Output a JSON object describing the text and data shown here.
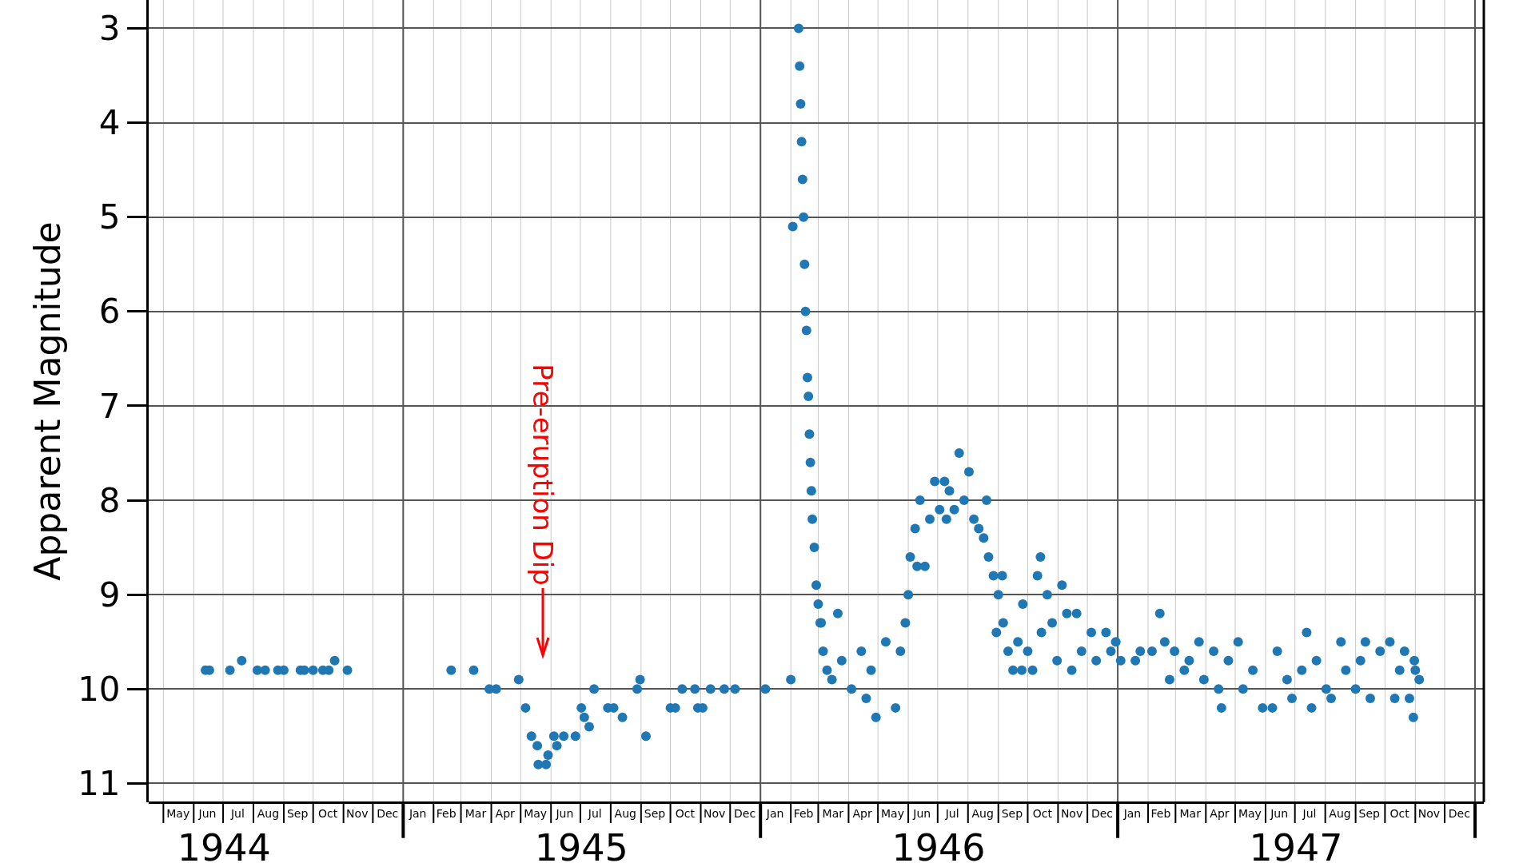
{
  "chart_data": {
    "type": "scatter",
    "ylabel": "Apparent Magnitude",
    "color": "#1f77b4",
    "marker": "circle",
    "grid": true,
    "x": [
      "1944-06-13",
      "1944-06-17",
      "1944-07-08",
      "1944-07-20",
      "1944-08-05",
      "1944-08-13",
      "1944-08-26",
      "1944-09-01",
      "1944-09-18",
      "1944-09-22",
      "1944-10-01",
      "1944-10-11",
      "1944-10-17",
      "1944-10-23",
      "1944-11-05",
      "1945-02-19",
      "1945-03-14",
      "1945-03-30",
      "1945-04-06",
      "1945-04-29",
      "1945-05-06",
      "1945-05-12",
      "1945-05-18",
      "1945-05-19",
      "1945-05-27",
      "1945-05-29",
      "1945-06-04",
      "1945-06-07",
      "1945-06-14",
      "1945-06-26",
      "1945-07-02",
      "1945-07-05",
      "1945-07-10",
      "1945-07-15",
      "1945-07-29",
      "1945-08-04",
      "1945-08-13",
      "1945-08-28",
      "1945-08-31",
      "1945-09-06",
      "1945-10-01",
      "1945-10-06",
      "1945-10-13",
      "1945-10-26",
      "1945-10-29",
      "1945-11-03",
      "1945-11-11",
      "1945-11-25",
      "1945-12-06",
      "1946-01-06",
      "1946-02-01",
      "1946-02-03",
      "1946-02-09",
      "1946-02-10",
      "1946-02-11",
      "1946-02-12",
      "1946-02-13",
      "1946-02-14",
      "1946-02-15",
      "1946-02-16",
      "1946-02-17",
      "1946-02-18",
      "1946-02-19",
      "1946-02-20",
      "1946-02-21",
      "1946-02-22",
      "1946-02-23",
      "1946-02-25",
      "1946-02-27",
      "1946-03-01",
      "1946-03-03",
      "1946-03-06",
      "1946-03-04",
      "1946-03-10",
      "1946-03-15",
      "1946-03-21",
      "1946-03-25",
      "1946-04-04",
      "1946-04-14",
      "1946-04-19",
      "1946-04-24",
      "1946-04-29",
      "1946-05-09",
      "1946-05-19",
      "1946-05-24",
      "1946-05-29",
      "1946-06-01",
      "1946-06-03",
      "1946-06-08",
      "1946-06-10",
      "1946-06-13",
      "1946-06-18",
      "1946-06-23",
      "1946-06-28",
      "1946-07-03",
      "1946-07-08",
      "1946-07-10",
      "1946-07-13",
      "1946-07-18",
      "1946-07-23",
      "1946-07-28",
      "1946-08-02",
      "1946-08-07",
      "1946-08-12",
      "1946-08-17",
      "1946-08-20",
      "1946-08-22",
      "1946-08-27",
      "1946-08-30",
      "1946-09-01",
      "1946-09-05",
      "1946-09-06",
      "1946-09-11",
      "1946-09-16",
      "1946-09-21",
      "1946-09-25",
      "1946-09-26",
      "1946-10-01",
      "1946-10-06",
      "1946-10-11",
      "1946-10-14",
      "1946-10-15",
      "1946-10-21",
      "1946-10-26",
      "1946-10-31",
      "1946-11-05",
      "1946-11-10",
      "1946-11-15",
      "1946-11-20",
      "1946-11-25",
      "1946-12-05",
      "1946-12-10",
      "1946-12-20",
      "1946-12-25",
      "1946-12-30",
      "1947-01-04",
      "1947-01-19",
      "1947-01-24",
      "1947-02-05",
      "1947-02-13",
      "1947-02-18",
      "1947-02-23",
      "1947-02-28",
      "1947-03-10",
      "1947-03-15",
      "1947-03-25",
      "1947-03-30",
      "1947-04-09",
      "1947-04-14",
      "1947-04-17",
      "1947-04-24",
      "1947-05-04",
      "1947-05-09",
      "1947-05-19",
      "1947-05-29",
      "1947-06-08",
      "1947-06-13",
      "1947-06-23",
      "1947-06-28",
      "1947-07-08",
      "1947-07-13",
      "1947-07-18",
      "1947-07-23",
      "1947-08-02",
      "1947-08-07",
      "1947-08-17",
      "1947-08-22",
      "1947-09-01",
      "1947-09-06",
      "1947-09-11",
      "1947-09-16",
      "1947-09-26",
      "1947-10-06",
      "1947-10-11",
      "1947-10-16",
      "1947-10-21",
      "1947-10-26",
      "1947-10-30",
      "1947-10-31",
      "1947-11-01",
      "1947-11-05"
    ],
    "values": [
      9.8,
      9.8,
      9.8,
      9.7,
      9.8,
      9.8,
      9.8,
      9.8,
      9.8,
      9.8,
      9.8,
      9.8,
      9.8,
      9.7,
      9.8,
      9.8,
      9.8,
      10.0,
      10.0,
      9.9,
      10.2,
      10.5,
      10.6,
      10.8,
      10.8,
      10.7,
      10.5,
      10.6,
      10.5,
      10.5,
      10.2,
      10.3,
      10.4,
      10.0,
      10.2,
      10.2,
      10.3,
      10.0,
      9.9,
      10.5,
      10.2,
      10.2,
      10.0,
      10.0,
      10.2,
      10.2,
      10.0,
      10.0,
      10.0,
      10.0,
      9.9,
      5.1,
      3.0,
      3.4,
      3.8,
      4.2,
      4.6,
      5.0,
      5.5,
      6.0,
      6.2,
      6.7,
      6.9,
      7.3,
      7.6,
      7.9,
      8.2,
      8.5,
      8.9,
      9.1,
      9.3,
      9.6,
      9.3,
      9.8,
      9.9,
      9.2,
      9.7,
      10.0,
      9.6,
      10.1,
      9.8,
      10.3,
      9.5,
      10.2,
      9.6,
      9.3,
      9.0,
      8.6,
      8.3,
      8.7,
      8.0,
      8.7,
      8.2,
      7.8,
      8.1,
      7.8,
      8.2,
      7.9,
      8.1,
      7.5,
      8.0,
      7.7,
      8.2,
      8.3,
      8.4,
      8.0,
      8.6,
      8.8,
      9.4,
      9.0,
      8.8,
      9.3,
      9.6,
      9.8,
      9.5,
      9.8,
      9.1,
      9.6,
      9.8,
      8.8,
      8.6,
      9.4,
      9.0,
      9.3,
      9.7,
      8.9,
      9.2,
      9.8,
      9.2,
      9.6,
      9.4,
      9.7,
      9.4,
      9.6,
      9.5,
      9.7,
      9.7,
      9.6,
      9.6,
      9.2,
      9.5,
      9.9,
      9.6,
      9.8,
      9.7,
      9.5,
      9.9,
      9.6,
      10.0,
      10.2,
      9.7,
      9.5,
      10.0,
      9.8,
      10.2,
      10.2,
      9.6,
      9.9,
      10.1,
      9.8,
      9.4,
      10.2,
      9.7,
      10.0,
      10.1,
      9.5,
      9.8,
      10.0,
      9.7,
      9.5,
      10.1,
      9.6,
      9.5,
      10.1,
      9.8,
      9.6,
      10.1,
      10.3,
      9.7,
      9.8,
      9.9
    ],
    "xlim": [
      "1944-04-16",
      "1948-01-10"
    ],
    "xticks": [
      {
        "value": "1944-05-16",
        "label": "May"
      },
      {
        "value": "1944-06-15",
        "label": "Jun"
      },
      {
        "value": "1944-07-16",
        "label": "Jul"
      },
      {
        "value": "1944-08-16",
        "label": "Aug"
      },
      {
        "value": "1944-09-15",
        "label": "Sep"
      },
      {
        "value": "1944-10-16",
        "label": "Oct"
      },
      {
        "value": "1944-11-15",
        "label": "Nov"
      },
      {
        "value": "1944-12-16",
        "label": "Dec"
      },
      {
        "value": "1945-01-16",
        "label": "Jan"
      },
      {
        "value": "1945-02-14",
        "label": "Feb"
      },
      {
        "value": "1945-03-16",
        "label": "Mar"
      },
      {
        "value": "1945-04-15",
        "label": "Apr"
      },
      {
        "value": "1945-05-16",
        "label": "May"
      },
      {
        "value": "1945-06-15",
        "label": "Jun"
      },
      {
        "value": "1945-07-16",
        "label": "Jul"
      },
      {
        "value": "1945-08-16",
        "label": "Aug"
      },
      {
        "value": "1945-09-15",
        "label": "Sep"
      },
      {
        "value": "1945-10-16",
        "label": "Oct"
      },
      {
        "value": "1945-11-15",
        "label": "Nov"
      },
      {
        "value": "1945-12-16",
        "label": "Dec"
      },
      {
        "value": "1946-01-16",
        "label": "Jan"
      },
      {
        "value": "1946-02-14",
        "label": "Feb"
      },
      {
        "value": "1946-03-16",
        "label": "Mar"
      },
      {
        "value": "1946-04-15",
        "label": "Apr"
      },
      {
        "value": "1946-05-16",
        "label": "May"
      },
      {
        "value": "1946-06-15",
        "label": "Jun"
      },
      {
        "value": "1946-07-16",
        "label": "Jul"
      },
      {
        "value": "1946-08-16",
        "label": "Aug"
      },
      {
        "value": "1946-09-15",
        "label": "Sep"
      },
      {
        "value": "1946-10-16",
        "label": "Oct"
      },
      {
        "value": "1946-11-15",
        "label": "Nov"
      },
      {
        "value": "1946-12-16",
        "label": "Dec"
      },
      {
        "value": "1947-01-16",
        "label": "Jan"
      },
      {
        "value": "1947-02-14",
        "label": "Feb"
      },
      {
        "value": "1947-03-16",
        "label": "Mar"
      },
      {
        "value": "1947-04-15",
        "label": "Apr"
      },
      {
        "value": "1947-05-16",
        "label": "May"
      },
      {
        "value": "1947-06-15",
        "label": "Jun"
      },
      {
        "value": "1947-07-16",
        "label": "Jul"
      },
      {
        "value": "1947-08-16",
        "label": "Aug"
      },
      {
        "value": "1947-09-15",
        "label": "Sep"
      },
      {
        "value": "1947-10-16",
        "label": "Oct"
      },
      {
        "value": "1947-11-15",
        "label": "Nov"
      },
      {
        "value": "1947-12-16",
        "label": "Dec"
      }
    ],
    "x2lim": [
      "1944-04-16",
      "1948-01-10"
    ],
    "x2ticks": [
      {
        "value": "1944-07-02",
        "label": "1944"
      },
      {
        "value": "1945-07-02",
        "label": "1945"
      },
      {
        "value": "1946-07-02",
        "label": "1946"
      },
      {
        "value": "1947-07-02",
        "label": "1947"
      }
    ],
    "ylim": [
      11.2,
      2.7
    ],
    "yticks": [
      3,
      4,
      5,
      6,
      7,
      8,
      9,
      10,
      11
    ],
    "annotations": [
      "Pre-eruption Dip"
    ]
  }
}
